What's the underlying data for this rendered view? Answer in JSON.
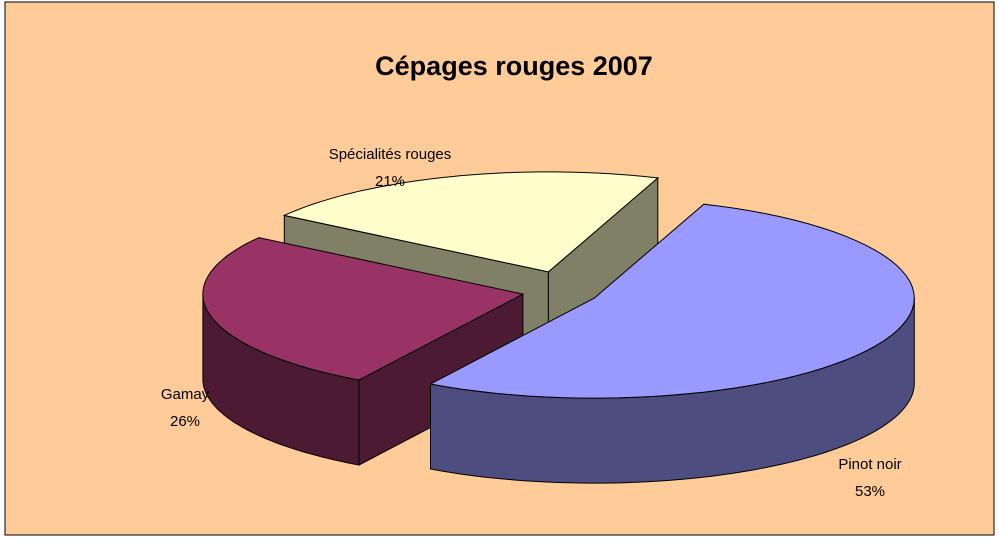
{
  "chart_data": {
    "type": "pie3d",
    "title": "Cépages rouges 2007",
    "categories": [
      "Pinot noir",
      "Gamay",
      "Spécialités rouges"
    ],
    "values": [
      53,
      26,
      21
    ],
    "value_labels": [
      "53%",
      "26%",
      "21%"
    ],
    "colors": [
      "#9999ff",
      "#993366",
      "#ffffcc"
    ]
  }
}
